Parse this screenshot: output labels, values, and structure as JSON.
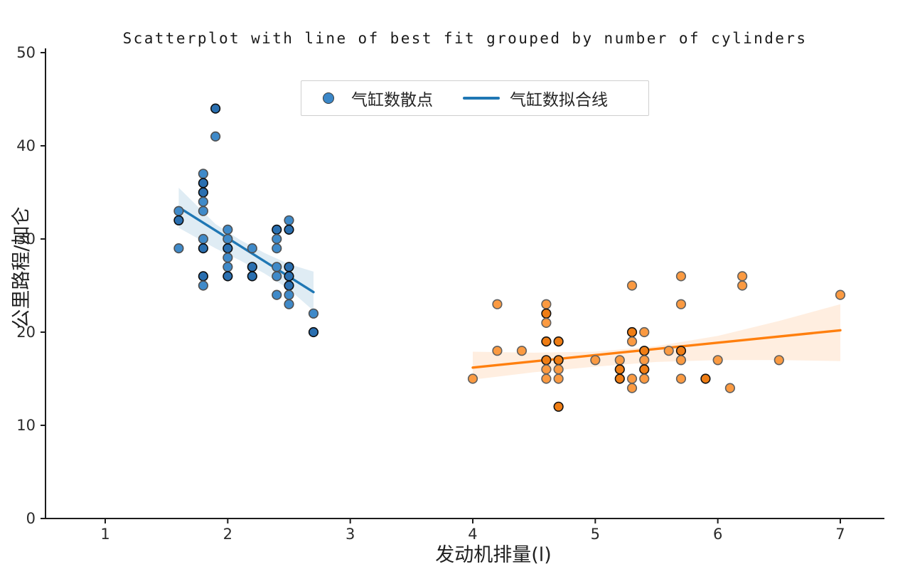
{
  "title": "Scatterplot with line of best fit grouped by number of cylinders",
  "axes": {
    "xlabel": "发动机排量(l)",
    "ylabel": "公里路程/加仑",
    "x_ticks": [
      1,
      2,
      3,
      4,
      5,
      6,
      7
    ],
    "y_ticks": [
      0,
      10,
      20,
      30,
      40,
      50
    ],
    "xlim": [
      0.51,
      7.37
    ],
    "ylim": [
      0,
      50
    ]
  },
  "legend": {
    "items": [
      {
        "label": "气缸数散点",
        "marker": "dot"
      },
      {
        "label": "气缸数拟合线",
        "marker": "line"
      }
    ]
  },
  "colors": {
    "blue_line": "#1f77b4",
    "blue_fill": "#3f8ac9",
    "blue_fill_dark": "#2a6fb0",
    "blue_edge": "#4f4f4f",
    "blue_edge_dark": "#0d0d0d",
    "blue_band": "rgba(31,119,180,0.14)",
    "orange_line": "#ff7f0e",
    "orange_fill": "#fb9a41",
    "orange_fill_dark": "#ef7d14",
    "orange_edge": "#5f5f5f",
    "orange_edge_dark": "#111111",
    "orange_band": "rgba(255,127,14,0.13)",
    "spine": "#1c1c1c",
    "tick_label": "#2b2b2b"
  },
  "chart_data": {
    "type": "scatter",
    "title": "Scatterplot with line of best fit grouped by number of cylinders",
    "xlabel": "发动机排量(l)",
    "ylabel": "公里路程/加仑",
    "xlim": [
      0.51,
      7.37
    ],
    "ylim": [
      0,
      50
    ],
    "grid": false,
    "legend_position": "upper center",
    "legend_entries": [
      "气缸数散点",
      "气缸数拟合线"
    ],
    "groups": [
      {
        "id": "blue",
        "description": "4-cylinder group: engine displacement (l) vs mileage per gallon; third value 1 = darker overlapped marker",
        "points": [
          [
            1.6,
            33,
            0
          ],
          [
            1.6,
            32,
            1
          ],
          [
            1.6,
            29,
            0
          ],
          [
            1.8,
            37,
            0
          ],
          [
            1.8,
            36,
            1
          ],
          [
            1.8,
            35,
            1
          ],
          [
            1.8,
            34,
            0
          ],
          [
            1.8,
            33,
            0
          ],
          [
            1.8,
            30,
            0
          ],
          [
            1.8,
            29,
            1
          ],
          [
            1.8,
            26,
            1
          ],
          [
            1.8,
            25,
            0
          ],
          [
            1.9,
            44,
            1
          ],
          [
            1.9,
            41,
            0
          ],
          [
            2.0,
            31,
            0
          ],
          [
            2.0,
            30,
            0
          ],
          [
            2.0,
            29,
            1
          ],
          [
            2.0,
            28,
            0
          ],
          [
            2.0,
            27,
            0
          ],
          [
            2.0,
            26,
            1
          ],
          [
            2.2,
            29,
            0
          ],
          [
            2.2,
            27,
            1
          ],
          [
            2.2,
            26,
            1
          ],
          [
            2.4,
            31,
            1
          ],
          [
            2.4,
            30,
            0
          ],
          [
            2.4,
            29,
            0
          ],
          [
            2.4,
            27,
            0
          ],
          [
            2.4,
            26,
            0
          ],
          [
            2.4,
            24,
            0
          ],
          [
            2.5,
            32,
            0
          ],
          [
            2.5,
            31,
            1
          ],
          [
            2.5,
            27,
            1
          ],
          [
            2.5,
            26,
            1
          ],
          [
            2.5,
            25,
            1
          ],
          [
            2.5,
            24,
            0
          ],
          [
            2.5,
            23,
            0
          ],
          [
            2.7,
            22,
            0
          ],
          [
            2.7,
            20,
            1
          ]
        ],
        "fit": {
          "x": [
            1.6,
            2.7
          ],
          "y": [
            33.4,
            24.3
          ]
        },
        "band": {
          "x": [
            1.6,
            1.9,
            2.1,
            2.3,
            2.5,
            2.7
          ],
          "upper": [
            35.5,
            31.6,
            29.9,
            28.5,
            27.3,
            26.5
          ],
          "lower": [
            31.2,
            29.0,
            27.7,
            26.3,
            24.6,
            22.3
          ]
        }
      },
      {
        "id": "orange",
        "description": "8-cylinder group: engine displacement (l) vs mileage per gallon; third value 1 = darker overlapped marker",
        "points": [
          [
            4.0,
            15,
            0
          ],
          [
            4.2,
            23,
            0
          ],
          [
            4.2,
            18,
            0
          ],
          [
            4.4,
            18,
            0
          ],
          [
            4.6,
            23,
            0
          ],
          [
            4.6,
            22,
            1
          ],
          [
            4.6,
            21,
            0
          ],
          [
            4.6,
            19,
            1
          ],
          [
            4.6,
            17,
            1
          ],
          [
            4.6,
            16,
            0
          ],
          [
            4.6,
            15,
            0
          ],
          [
            4.7,
            19,
            1
          ],
          [
            4.7,
            17,
            1
          ],
          [
            4.7,
            16,
            0
          ],
          [
            4.7,
            15,
            0
          ],
          [
            4.7,
            12,
            1
          ],
          [
            5.0,
            17,
            0
          ],
          [
            5.2,
            17,
            0
          ],
          [
            5.2,
            16,
            1
          ],
          [
            5.2,
            15,
            1
          ],
          [
            5.3,
            25,
            0
          ],
          [
            5.3,
            20,
            1
          ],
          [
            5.3,
            19,
            0
          ],
          [
            5.3,
            15,
            0
          ],
          [
            5.3,
            14,
            0
          ],
          [
            5.4,
            20,
            0
          ],
          [
            5.4,
            18,
            1
          ],
          [
            5.4,
            17,
            0
          ],
          [
            5.4,
            16,
            1
          ],
          [
            5.4,
            15,
            0
          ],
          [
            5.6,
            18,
            0
          ],
          [
            5.7,
            26,
            0
          ],
          [
            5.7,
            23,
            0
          ],
          [
            5.7,
            18,
            1
          ],
          [
            5.7,
            17,
            0
          ],
          [
            5.7,
            15,
            0
          ],
          [
            5.9,
            15,
            1
          ],
          [
            6.0,
            17,
            0
          ],
          [
            6.1,
            14,
            0
          ],
          [
            6.2,
            26,
            0
          ],
          [
            6.2,
            25,
            0
          ],
          [
            6.5,
            17,
            0
          ],
          [
            7.0,
            24,
            0
          ]
        ],
        "fit": {
          "x": [
            4.0,
            7.0
          ],
          "y": [
            16.2,
            20.2
          ]
        },
        "band": {
          "x": [
            4.0,
            4.5,
            5.0,
            5.5,
            6.0,
            6.5,
            7.0
          ],
          "upper": [
            17.9,
            17.8,
            17.9,
            18.5,
            19.6,
            21.2,
            23.0
          ],
          "lower": [
            14.9,
            15.7,
            16.3,
            16.8,
            17.0,
            17.0,
            16.9
          ]
        }
      }
    ]
  }
}
